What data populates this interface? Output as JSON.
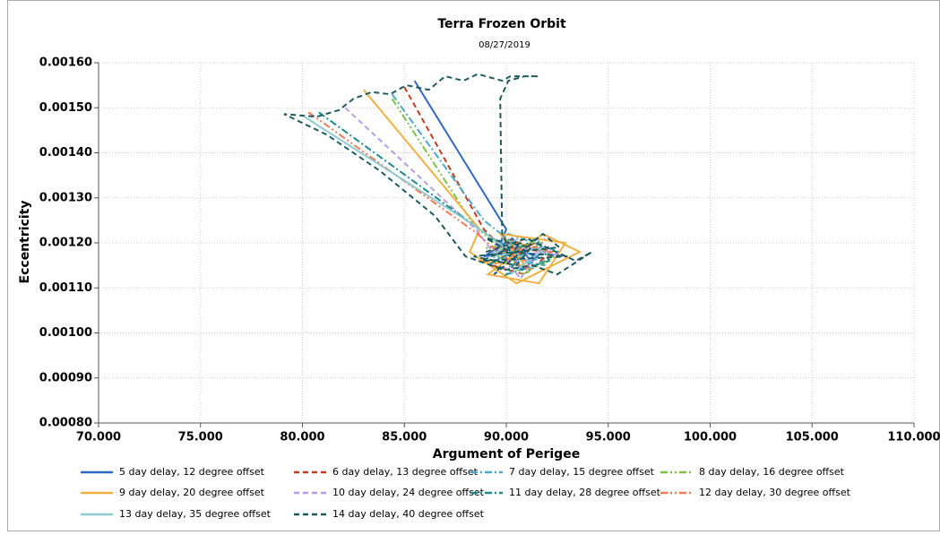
{
  "chart_data": {
    "type": "line",
    "title": "Terra Frozen Orbit",
    "subtitle": "08/27/2019",
    "x_label": "Argument of Perigee",
    "y_label": "Eccentricity",
    "xlim": [
      70,
      110
    ],
    "ylim": [
      0.0008,
      0.0016
    ],
    "grid": true,
    "legend": "bottom",
    "xticks": [
      {
        "value": 70,
        "label": "70.000"
      },
      {
        "value": 75,
        "label": "75.000"
      },
      {
        "value": 80,
        "label": "80.000"
      },
      {
        "value": 85,
        "label": "85.000"
      },
      {
        "value": 90,
        "label": "90.000"
      },
      {
        "value": 95,
        "label": "95.000"
      },
      {
        "value": 100,
        "label": "100.000"
      },
      {
        "value": 105,
        "label": "105.000"
      },
      {
        "value": 110,
        "label": "110.000"
      }
    ],
    "yticks": [
      {
        "value": 0.0008,
        "label": "0.00080"
      },
      {
        "value": 0.0009,
        "label": "0.00090"
      },
      {
        "value": 0.001,
        "label": "0.00100"
      },
      {
        "value": 0.0011,
        "label": "0.00110"
      },
      {
        "value": 0.0012,
        "label": "0.00120"
      },
      {
        "value": 0.0013,
        "label": "0.00130"
      },
      {
        "value": 0.0014,
        "label": "0.00140"
      },
      {
        "value": 0.0015,
        "label": "0.00150"
      },
      {
        "value": 0.0016,
        "label": "0.00160"
      }
    ],
    "series": [
      {
        "name": "5 day delay, 12 degree offset",
        "color": "#2f68c6",
        "dash": "solid",
        "x": [
          85.5,
          90.0,
          89.5,
          91.2,
          90.3,
          88.9,
          92.0,
          90.8,
          89.6,
          91.5
        ],
        "y": [
          0.00156,
          0.00123,
          0.00118,
          0.00116,
          0.00121,
          0.00117,
          0.00119,
          0.00114,
          0.0012,
          0.00117
        ]
      },
      {
        "name": "6 day delay, 13 degree offset",
        "color": "#c33b1a",
        "dash": "dashed",
        "x": [
          85.0,
          88.9,
          90.2,
          91.4,
          89.3,
          90.9,
          92.2,
          89.9,
          91.0
        ],
        "y": [
          0.001546,
          0.00123,
          0.00117,
          0.0012,
          0.00115,
          0.00113,
          0.00118,
          0.00121,
          0.00116
        ]
      },
      {
        "name": "7 day delay, 15 degree offset",
        "color": "#4aa7c9",
        "dash": "dashdot",
        "x": [
          84.4,
          88.9,
          90.6,
          91.9,
          89.2,
          90.1,
          92.6,
          91.1
        ],
        "y": [
          0.00153,
          0.00125,
          0.00119,
          0.00115,
          0.00117,
          0.00122,
          0.00118,
          0.00114
        ]
      },
      {
        "name": "8 day delay, 16 degree offset",
        "color": "#7cc242",
        "dash": "dashdotdot",
        "x": [
          84.4,
          88.4,
          90.4,
          91.7,
          89.0,
          90.8,
          92.4,
          89.8
        ],
        "y": [
          0.00152,
          0.00124,
          0.00116,
          0.0012,
          0.00119,
          0.00113,
          0.00117,
          0.00121
        ]
      },
      {
        "name": "9 day delay, 20 degree offset",
        "color": "#f0b142",
        "dash": "solid",
        "x": [
          83.0,
          88.7,
          88.2,
          90.5,
          93.6,
          91.8,
          89.1,
          91.6,
          92.9,
          89.7,
          90.9,
          88.6
        ],
        "y": [
          0.00154,
          0.00123,
          0.00118,
          0.00111,
          0.00118,
          0.00122,
          0.00113,
          0.00111,
          0.0012,
          0.00122,
          0.00115,
          0.00116
        ]
      },
      {
        "name": "10 day delay, 24 degree offset",
        "color": "#b79de9",
        "dash": "dashed",
        "x": [
          82.1,
          88.5,
          90.0,
          91.3,
          92.8,
          89.4,
          90.7,
          91.9
        ],
        "y": [
          0.0015,
          0.00123,
          0.00114,
          0.00119,
          0.00117,
          0.0012,
          0.00112,
          0.00121
        ]
      },
      {
        "name": "11 day delay, 28 degree offset",
        "color": "#1e8a8b",
        "dash": "dashdot",
        "x": [
          80.8,
          88.7,
          90.3,
          89.1,
          91.5,
          92.1,
          90.0,
          91.0
        ],
        "y": [
          0.00149,
          0.00123,
          0.00118,
          0.00115,
          0.00121,
          0.00116,
          0.00113,
          0.00119
        ]
      },
      {
        "name": "12 day delay, 30 degree offset",
        "color": "#f07a52",
        "dash": "dashdotdot",
        "x": [
          80.3,
          88.6,
          89.8,
          91.2,
          90.5,
          92.3,
          89.5,
          90.9
        ],
        "y": [
          0.00149,
          0.00122,
          0.00117,
          0.00114,
          0.0012,
          0.00118,
          0.00119,
          0.00116
        ]
      },
      {
        "name": "13 day delay, 35 degree offset",
        "color": "#8fc9d2",
        "dash": "solid",
        "x": [
          80.1,
          88.4,
          89.9,
          91.1,
          90.2,
          92.0,
          89.2,
          90.6
        ],
        "y": [
          0.00148,
          0.00124,
          0.00119,
          0.00116,
          0.00113,
          0.00119,
          0.00117,
          0.00121
        ]
      },
      {
        "name": "14 day delay, 40 degree offset",
        "color": "#1f5a5f",
        "dash": "dashed",
        "x": [
          89.0,
          91.0,
          93.4,
          94.2,
          92.5,
          91.3,
          89.9,
          88.0,
          86.5,
          83.8,
          81.2,
          79.1,
          80.7,
          81.8,
          82.5,
          83.4,
          84.3,
          85.1,
          86.2,
          87.0,
          87.9,
          88.6,
          89.8,
          90.2,
          91.6,
          90.9,
          90.1,
          89.7,
          89.8,
          90.2,
          89.0,
          91.2,
          90.5,
          88.4,
          92.6,
          91.8,
          89.4,
          90.7,
          88.8,
          93.0,
          90.0
        ],
        "y": [
          0.00118,
          0.00121,
          0.00116,
          0.00118,
          0.00113,
          0.00115,
          0.00114,
          0.00117,
          0.00126,
          0.00136,
          0.00144,
          0.001486,
          0.00148,
          0.001495,
          0.00152,
          0.001535,
          0.00153,
          0.00155,
          0.00154,
          0.00157,
          0.00156,
          0.001575,
          0.00156,
          0.00157,
          0.00157,
          0.00157,
          0.00156,
          0.00152,
          0.00122,
          0.00118,
          0.00121,
          0.00119,
          0.00115,
          0.00117,
          0.00119,
          0.00122,
          0.00113,
          0.0012,
          0.00116,
          0.00117,
          0.00118
        ]
      }
    ]
  }
}
